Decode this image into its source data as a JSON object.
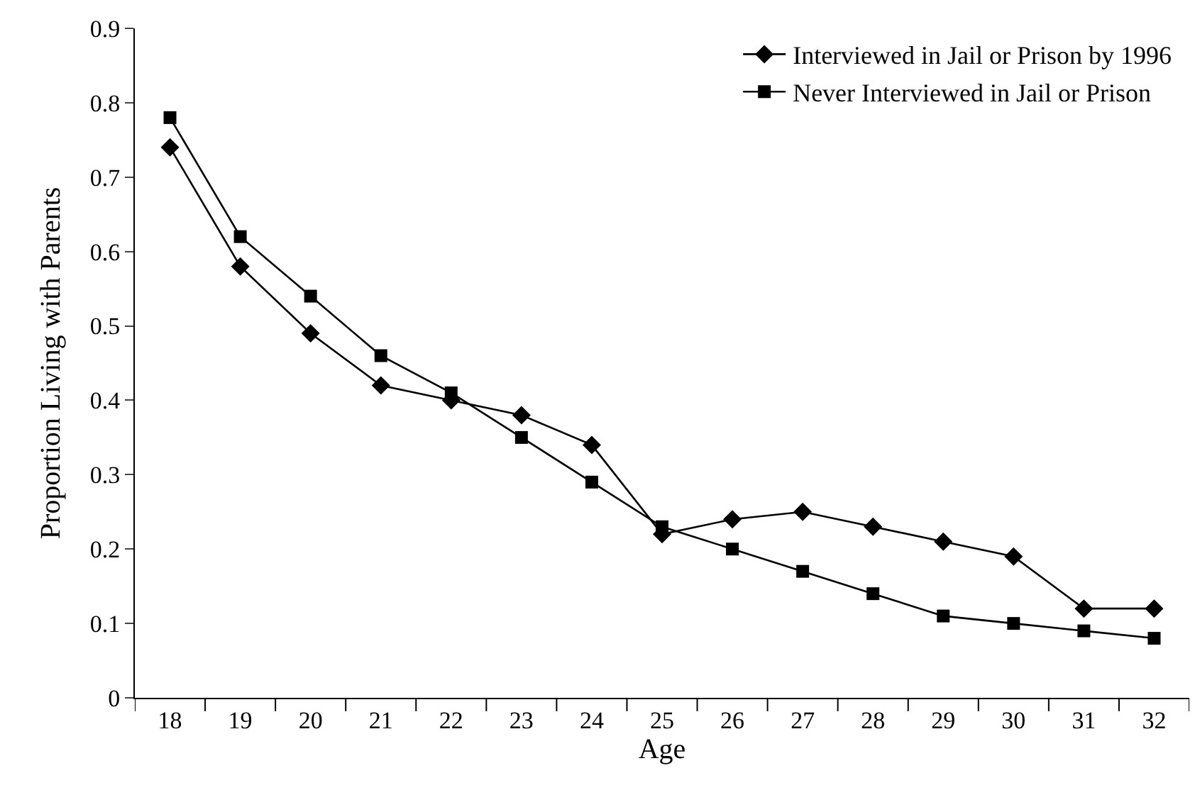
{
  "chart_data": {
    "type": "line",
    "xlabel": "Age",
    "ylabel": "Proportion Living with Parents",
    "categories": [
      "18",
      "19",
      "20",
      "21",
      "22",
      "23",
      "24",
      "25",
      "26",
      "27",
      "28",
      "29",
      "30",
      "31",
      "32"
    ],
    "series": [
      {
        "name": "Interviewed in Jail or Prison by 1996",
        "color": "#000000",
        "marker": "diamond",
        "values": [
          0.74,
          0.58,
          0.49,
          0.42,
          0.4,
          0.38,
          0.34,
          0.22,
          0.24,
          0.25,
          0.23,
          0.21,
          0.19,
          0.12,
          0.12
        ]
      },
      {
        "name": "Never Interviewed in Jail or Prison",
        "color": "#000000",
        "marker": "square",
        "values": [
          0.78,
          0.62,
          0.54,
          0.46,
          0.41,
          0.35,
          0.29,
          0.23,
          0.2,
          0.17,
          0.14,
          0.11,
          0.1,
          0.09,
          0.08
        ]
      }
    ],
    "ylim": [
      0,
      0.9
    ],
    "yticks": [
      {
        "value": 0,
        "label": "0"
      },
      0.1,
      0.2,
      0.3,
      0.4,
      0.5,
      0.6,
      0.7,
      0.8,
      0.9
    ],
    "legend": "top right",
    "line_style": "solid"
  }
}
